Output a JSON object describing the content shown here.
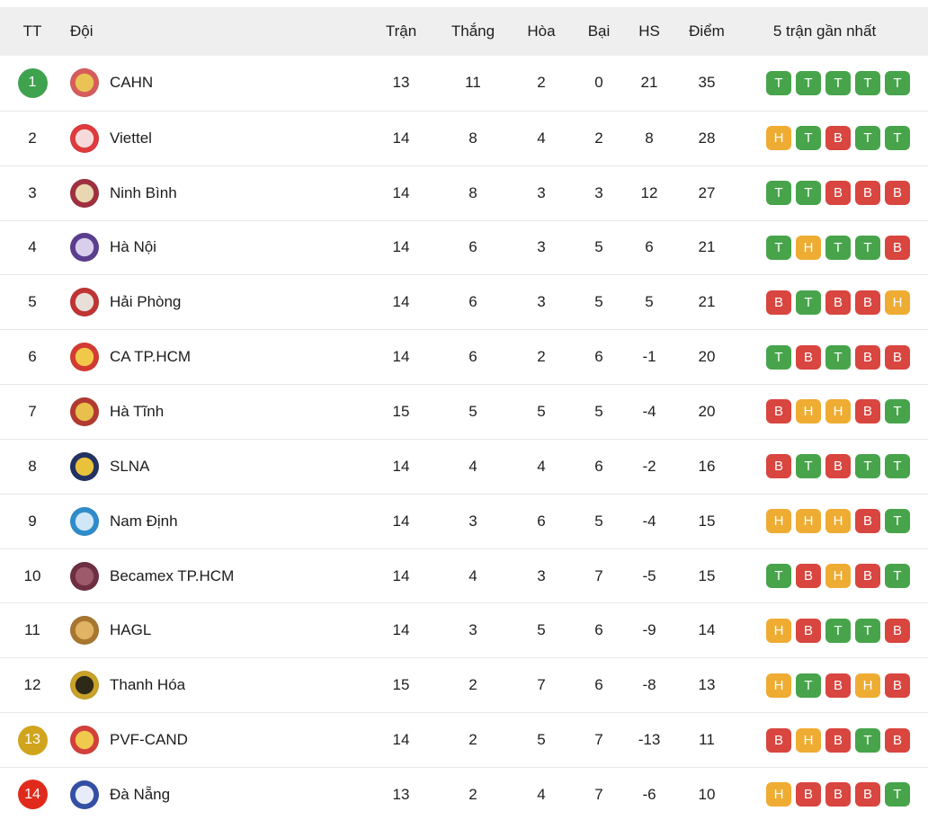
{
  "table": {
    "columns": {
      "tt": "TT",
      "doi": "Đội",
      "tran": "Trận",
      "thang": "Thắng",
      "hoa": "Hòa",
      "bai": "Bại",
      "hs": "HS",
      "diem": "Điểm",
      "form": "5 trận gần nhất"
    },
    "form_colors": {
      "T": "#47a44b",
      "H": "#efac33",
      "B": "#d9453f"
    },
    "pos_badge_colors": {
      "green": "#3fa24f",
      "gold": "#d1a41d",
      "red": "#e02a1c"
    },
    "rows": [
      {
        "pos": "1",
        "pos_badge": "green",
        "team": "CAHN",
        "logo": {
          "ring": "#d85c5c",
          "center": "#e9c455"
        },
        "tran": "13",
        "thang": "11",
        "hoa": "2",
        "bai": "0",
        "hs": "21",
        "diem": "35",
        "form": [
          "T",
          "T",
          "T",
          "T",
          "T"
        ]
      },
      {
        "pos": "2",
        "pos_badge": "none",
        "team": "Viettel",
        "logo": {
          "ring": "#df3a3d",
          "center": "#f6dada"
        },
        "tran": "14",
        "thang": "8",
        "hoa": "4",
        "bai": "2",
        "hs": "8",
        "diem": "28",
        "form": [
          "H",
          "T",
          "B",
          "T",
          "T"
        ]
      },
      {
        "pos": "3",
        "pos_badge": "none",
        "team": "Ninh Bình",
        "logo": {
          "ring": "#a03040",
          "center": "#e8d7b0"
        },
        "tran": "14",
        "thang": "8",
        "hoa": "3",
        "bai": "3",
        "hs": "12",
        "diem": "27",
        "form": [
          "T",
          "T",
          "B",
          "B",
          "B"
        ]
      },
      {
        "pos": "4",
        "pos_badge": "none",
        "team": "Hà Nội",
        "logo": {
          "ring": "#5b3e8f",
          "center": "#d9cfec"
        },
        "tran": "14",
        "thang": "6",
        "hoa": "3",
        "bai": "5",
        "hs": "6",
        "diem": "21",
        "form": [
          "T",
          "H",
          "T",
          "T",
          "B"
        ]
      },
      {
        "pos": "5",
        "pos_badge": "none",
        "team": "Hải Phòng",
        "logo": {
          "ring": "#c03434",
          "center": "#e8dfd8"
        },
        "tran": "14",
        "thang": "6",
        "hoa": "3",
        "bai": "5",
        "hs": "5",
        "diem": "21",
        "form": [
          "B",
          "T",
          "B",
          "B",
          "H"
        ]
      },
      {
        "pos": "6",
        "pos_badge": "none",
        "team": "CA TP.HCM",
        "logo": {
          "ring": "#d33b32",
          "center": "#f2c84b"
        },
        "tran": "14",
        "thang": "6",
        "hoa": "2",
        "bai": "6",
        "hs": "-1",
        "diem": "20",
        "form": [
          "T",
          "B",
          "T",
          "B",
          "B"
        ]
      },
      {
        "pos": "7",
        "pos_badge": "none",
        "team": "Hà Tĩnh",
        "logo": {
          "ring": "#b23a30",
          "center": "#e9bf4e"
        },
        "tran": "15",
        "thang": "5",
        "hoa": "5",
        "bai": "5",
        "hs": "-4",
        "diem": "20",
        "form": [
          "B",
          "H",
          "H",
          "B",
          "T"
        ]
      },
      {
        "pos": "8",
        "pos_badge": "none",
        "team": "SLNA",
        "logo": {
          "ring": "#233263",
          "center": "#e9c23c"
        },
        "tran": "14",
        "thang": "4",
        "hoa": "4",
        "bai": "6",
        "hs": "-2",
        "diem": "16",
        "form": [
          "B",
          "T",
          "B",
          "T",
          "T"
        ]
      },
      {
        "pos": "9",
        "pos_badge": "none",
        "team": "Nam Định",
        "logo": {
          "ring": "#2f8ccb",
          "center": "#cfe7f6"
        },
        "tran": "14",
        "thang": "3",
        "hoa": "6",
        "bai": "5",
        "hs": "-4",
        "diem": "15",
        "form": [
          "H",
          "H",
          "H",
          "B",
          "T"
        ]
      },
      {
        "pos": "10",
        "pos_badge": "none",
        "team": "Becamex TP.HCM",
        "logo": {
          "ring": "#6e2f42",
          "center": "#9c5a6b"
        },
        "tran": "14",
        "thang": "4",
        "hoa": "3",
        "bai": "7",
        "hs": "-5",
        "diem": "15",
        "form": [
          "T",
          "B",
          "H",
          "B",
          "T"
        ]
      },
      {
        "pos": "11",
        "pos_badge": "none",
        "team": "HAGL",
        "logo": {
          "ring": "#a8762f",
          "center": "#e0b464"
        },
        "tran": "14",
        "thang": "3",
        "hoa": "5",
        "bai": "6",
        "hs": "-9",
        "diem": "14",
        "form": [
          "H",
          "B",
          "T",
          "T",
          "B"
        ]
      },
      {
        "pos": "12",
        "pos_badge": "none",
        "team": "Thanh Hóa",
        "logo": {
          "ring": "#c9a22a",
          "center": "#2e2a18"
        },
        "tran": "15",
        "thang": "2",
        "hoa": "7",
        "bai": "6",
        "hs": "-8",
        "diem": "13",
        "form": [
          "H",
          "T",
          "B",
          "H",
          "B"
        ]
      },
      {
        "pos": "13",
        "pos_badge": "gold",
        "team": "PVF-CAND",
        "logo": {
          "ring": "#d4403a",
          "center": "#f0c94f"
        },
        "tran": "14",
        "thang": "2",
        "hoa": "5",
        "bai": "7",
        "hs": "-13",
        "diem": "11",
        "form": [
          "B",
          "H",
          "B",
          "T",
          "B"
        ]
      },
      {
        "pos": "14",
        "pos_badge": "red",
        "team": "Đà Nẵng",
        "logo": {
          "ring": "#3350a5",
          "center": "#e8ecf8"
        },
        "tran": "13",
        "thang": "2",
        "hoa": "4",
        "bai": "7",
        "hs": "-6",
        "diem": "10",
        "form": [
          "H",
          "B",
          "B",
          "B",
          "T"
        ]
      }
    ]
  }
}
